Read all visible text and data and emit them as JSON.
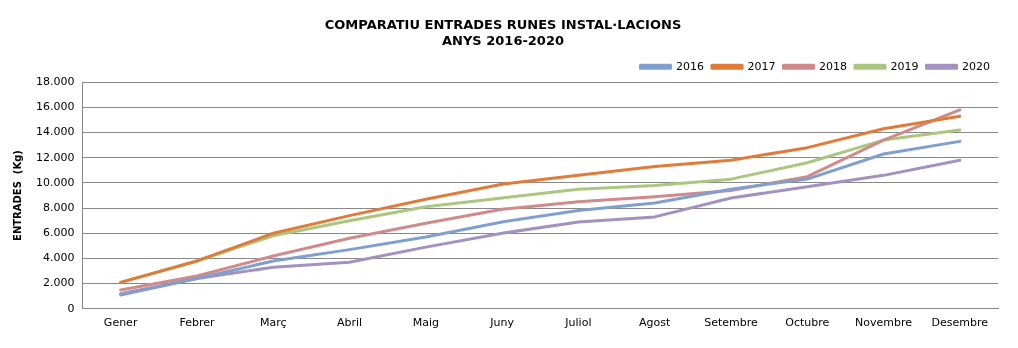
{
  "chart_data": {
    "type": "line",
    "title": [
      "COMPARATIU ENTRADES RUNES INSTAL·LACIONS",
      "ANYS 2016-2020"
    ],
    "ylabel": "ENTRADES  (Kg)",
    "categories": [
      "Gener",
      "Febrer",
      "Març",
      "Abril",
      "Maig",
      "Juny",
      "Juliol",
      "Agost",
      "Setembre",
      "Octubre",
      "Novembre",
      "Desembre"
    ],
    "series": [
      {
        "name": "2016",
        "color": "#7f9fcf",
        "values": [
          1100,
          2400,
          3800,
          4700,
          5700,
          6900,
          7800,
          8400,
          9500,
          10300,
          12300,
          13300
        ]
      },
      {
        "name": "2017",
        "color": "#e07b39",
        "values": [
          2100,
          3800,
          6000,
          7400,
          8700,
          9900,
          10600,
          11300,
          11800,
          12800,
          14300,
          15300
        ]
      },
      {
        "name": "2018",
        "color": "#d08a8a",
        "values": [
          1500,
          2600,
          4200,
          5600,
          6800,
          7900,
          8500,
          8900,
          9400,
          10500,
          13400,
          15800
        ]
      },
      {
        "name": "2019",
        "color": "#a9c77f",
        "values": [
          2100,
          3800,
          5800,
          7000,
          8100,
          8800,
          9500,
          9800,
          10300,
          11600,
          13400,
          14200
        ]
      },
      {
        "name": "2020",
        "color": "#a391bf",
        "values": [
          1200,
          2400,
          3300,
          3700,
          4900,
          6000,
          6900,
          7300,
          8800,
          9700,
          10600,
          11800
        ]
      }
    ],
    "ylim": [
      0,
      18000
    ],
    "yticks": [
      {
        "value": 0,
        "label": "0"
      },
      {
        "value": 2000,
        "label": "2.000"
      },
      {
        "value": 4000,
        "label": "4.000"
      },
      {
        "value": 6000,
        "label": "6.000"
      },
      {
        "value": 8000,
        "label": "8.000"
      },
      {
        "value": 10000,
        "label": "10.000"
      },
      {
        "value": 12000,
        "label": "12.000"
      },
      {
        "value": 14000,
        "label": "14.000"
      },
      {
        "value": 16000,
        "label": "16.000"
      },
      {
        "value": 18000,
        "label": "18.000"
      }
    ],
    "grid": "y",
    "legend": "top right",
    "marker": "none",
    "line_style": "solid"
  }
}
